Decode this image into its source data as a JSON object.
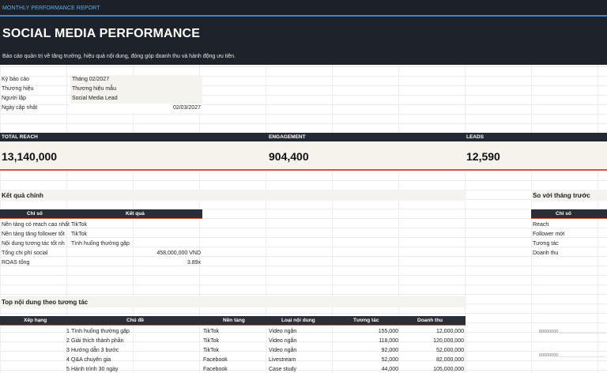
{
  "header": {
    "report_label": "MONTHLY PERFORMANCE REPORT",
    "title": "SOCIAL MEDIA PERFORMANCE",
    "subtitle": "Báo cáo quản trị về tăng trưởng, hiệu quả nội dung, đóng góp doanh thu và hành động ưu tiên."
  },
  "meta": [
    {
      "label": "Kỳ báo cáo",
      "value": "Tháng 02/2027"
    },
    {
      "label": "Thương hiệu",
      "value": "Thương hiệu mẫu"
    },
    {
      "label": "Người lập",
      "value": "Social Media Lead"
    },
    {
      "label": "Ngày cập nhật",
      "value": "02/03/2027"
    }
  ],
  "kpis": [
    {
      "label": "TOTAL REACH",
      "value": "13,140,000"
    },
    {
      "label": "ENGAGEMENT",
      "value": "904,400"
    },
    {
      "label": "LEADS",
      "value": "12,590"
    }
  ],
  "results": {
    "title": "Kết quả chính",
    "col_metric": "Chỉ số",
    "col_result": "Kết quả",
    "rows": [
      {
        "metric": "Nền tảng có reach cao nhất",
        "result": "TikTok",
        "align": "left"
      },
      {
        "metric": "Nền tảng tăng follower tốt",
        "result": "TikTok",
        "align": "left"
      },
      {
        "metric": "Nội dung tương tác tốt nh",
        "result": "Tình huống thường gặp",
        "align": "left"
      },
      {
        "metric": "Tổng chi phí social",
        "result": "458,000,000 VND",
        "align": "right"
      },
      {
        "metric": "ROAS tổng",
        "result": "3.89x",
        "align": "right"
      }
    ]
  },
  "compare": {
    "title": "So với tháng trước",
    "col_metric": "Chỉ số",
    "rows": [
      "Reach",
      "Follower mới",
      "Tương tác",
      "Doanh thu"
    ]
  },
  "top_content": {
    "title": "Top nội dung theo tương tác",
    "columns": [
      "Xếp hạng",
      "Chủ đề",
      "Nền tảng",
      "Loại nội dung",
      "Tương tác",
      "Doanh thu"
    ],
    "rows": [
      {
        "rank": "1",
        "topic": "Tình huống thường gặp",
        "platform": "TikTok",
        "type": "Video ngắn",
        "engagement": "155,000",
        "revenue": "12,000,000"
      },
      {
        "rank": "2",
        "topic": "Giải thích thành phần",
        "platform": "TikTok",
        "type": "Video ngắn",
        "engagement": "118,000",
        "revenue": "120,000,000"
      },
      {
        "rank": "3",
        "topic": "Hướng dẫn 3 bước",
        "platform": "TikTok",
        "type": "Video ngắn",
        "engagement": "92,000",
        "revenue": "52,000,000"
      },
      {
        "rank": "4",
        "topic": "Q&A chuyên gia",
        "platform": "Facebook",
        "type": "Livestream",
        "engagement": "52,000",
        "revenue": "82,000,000"
      },
      {
        "rank": "5",
        "topic": "Hành trình 30 ngày",
        "platform": "Facebook",
        "type": "Case study",
        "engagement": "44,000",
        "revenue": "105,000,000"
      }
    ]
  },
  "chart_stub": {
    "ticks": [
      "80000000",
      "60000000"
    ]
  }
}
